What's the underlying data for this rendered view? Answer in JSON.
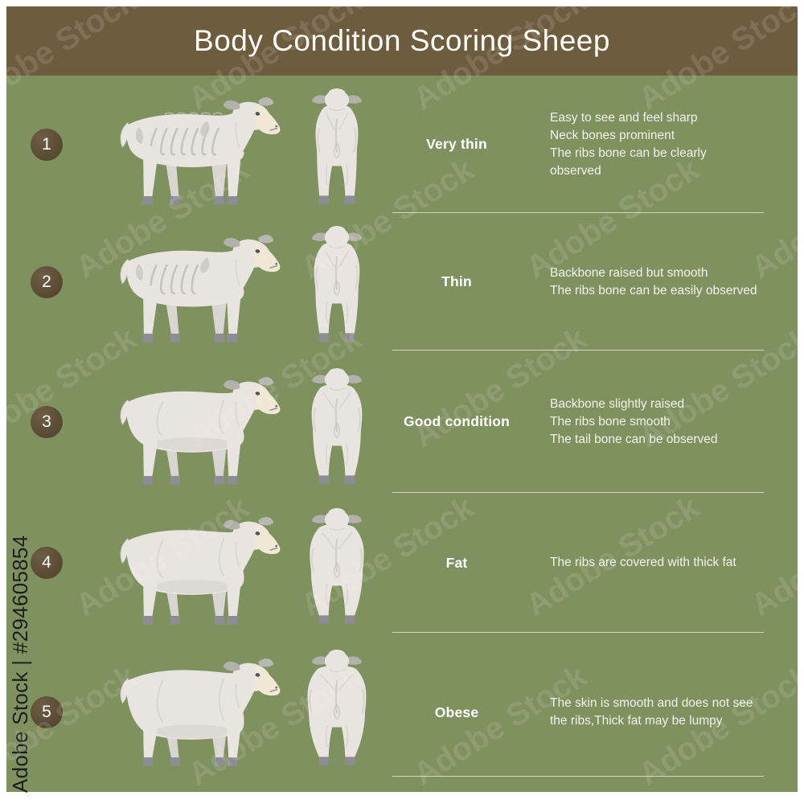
{
  "title": "Body Condition Scoring Sheep",
  "rows": [
    {
      "score": "1",
      "label": "Very thin",
      "description_lines": [
        "Easy to see and feel sharp",
        "Neck bones prominent",
        "The ribs bone can be clearly observed"
      ]
    },
    {
      "score": "2",
      "label": "Thin",
      "description_lines": [
        "Backbone raised but smooth",
        "The ribs bone can be easily observed"
      ]
    },
    {
      "score": "3",
      "label": "Good condition",
      "description_lines": [
        "Backbone slightly raised",
        "The ribs bone smooth",
        "The tail bone can be observed"
      ]
    },
    {
      "score": "4",
      "label": "Fat",
      "description_lines": [
        "The ribs are covered with thick fat"
      ]
    },
    {
      "score": "5",
      "label": "Obese",
      "description_lines": [
        "The skin is smooth and does not see",
        "the ribs,Thick fat may be lumpy"
      ]
    }
  ],
  "watermark": {
    "side_label": "Adobe Stock | #294605854",
    "tile_label": "Adobe Stock"
  },
  "colors": {
    "header_brown": "#6d5c3e",
    "panel_green": "#7e915f",
    "badge_brown": "#5a4b34",
    "divider": "#ccd6b4",
    "text_white": "#ffffff",
    "sheep_body": "#e8e5e0",
    "sheep_shade": "#c9c7c2",
    "sheep_far_leg": "#d9d6d1",
    "sheep_hoof": "#8e8d96",
    "sheep_muzzle": "#f1e8d3",
    "sheep_ear": "#b3b1ac",
    "sheep_eye": "#4e545c"
  }
}
